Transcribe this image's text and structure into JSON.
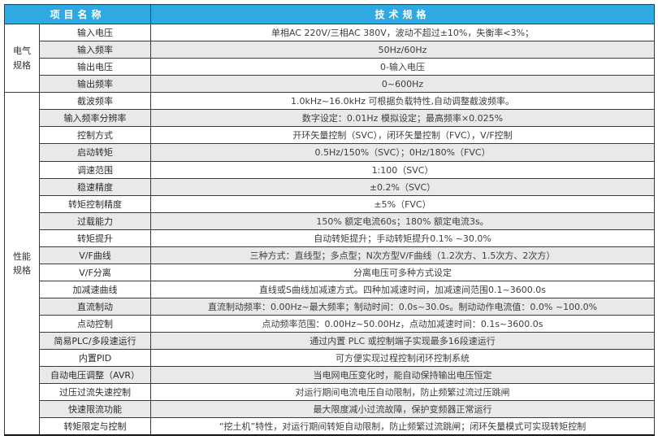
{
  "colors": {
    "header_bg": "#2FA9E1",
    "header_text": "#ffffff",
    "row_gray": "#e9e9e9",
    "row_white": "#ffffff",
    "border": "#3a3a3a"
  },
  "header": {
    "item_col": "项目名称",
    "spec_col": "技术规格"
  },
  "groups": [
    {
      "name": "电气\n规格",
      "rows": [
        {
          "label": "输入电压",
          "value": "单相AC 220V/三相AC 380V，波动不超过±10%，失衡率<3%；",
          "shade": "white"
        },
        {
          "label": "输入频率",
          "value": "50Hz/60Hz",
          "shade": "gray"
        },
        {
          "label": "输出电压",
          "value": "0-输入电压",
          "shade": "white"
        },
        {
          "label": "输出频率",
          "value": "0~600Hz",
          "shade": "gray"
        }
      ]
    },
    {
      "name": "性能\n规格",
      "rows": [
        {
          "label": "截波频率",
          "value": "1.0kHz~16.0kHz 可根据负载特性,自动调整截波频率。",
          "shade": "white"
        },
        {
          "label": "输入频率分辨率",
          "value": "数字设定：0.01Hz 模拟设定；最高频率×0.025%",
          "shade": "gray"
        },
        {
          "label": "控制方式",
          "value": "开环矢量控制（SVC），闭环矢量控制（FVC），V/F控制",
          "shade": "white"
        },
        {
          "label": "启动转矩",
          "value": "0.5Hz/150%（SVC）；0Hz/180%（FVC）",
          "shade": "gray"
        },
        {
          "label": "调速范围",
          "value": "1:100（SVC）",
          "shade": "white"
        },
        {
          "label": "稳速精度",
          "value": "±0.2%（SVC）",
          "shade": "gray"
        },
        {
          "label": "转矩控制精度",
          "value": "±5%（FVC）",
          "shade": "white"
        },
        {
          "label": "过载能力",
          "value": "150% 额定电流60s；180% 额定电流3s。",
          "shade": "gray"
        },
        {
          "label": "转矩提升",
          "value": "自动转矩提升；手动转矩提升0.1% ~30.0%",
          "shade": "white"
        },
        {
          "label": "V/F曲线",
          "value": "三种方式：直线型；多点型；N次方型V/F曲线（1.2次方、1.5次方、2次方）",
          "shade": "gray"
        },
        {
          "label": "V/F分离",
          "value": "分离电压可多种方式设定",
          "shade": "white"
        },
        {
          "label": "加减速曲线",
          "value": "直线或S曲线加减速方式。四种加减速时间，加减速间范围0.1~3600.0s",
          "shade": "white"
        },
        {
          "label": "直流制动",
          "value": "直流制动频率：0.00Hz~最大频率；制动时间：0.0s~30.0s。制动动作电流值：0.0% ~100.0%",
          "shade": "gray"
        },
        {
          "label": "点动控制",
          "value": "点动频率范围：0.00Hz~50.00Hz，点动加减速时间：0.1s~3600.0s",
          "shade": "white"
        },
        {
          "label": "简易PLC/多段速运行",
          "value": "通过内置 PLC 或控制端子实现最多16段速运行",
          "shade": "gray"
        },
        {
          "label": "内置PID",
          "value": "可方便实现过程控制闭环控制系统",
          "shade": "white"
        },
        {
          "label": "自动电压调整（AVR）",
          "value": "当电网电压变化时，能自动保持输出电压恒定",
          "shade": "gray"
        },
        {
          "label": "过压过流失速控制",
          "value": "对运行期间电流电压自动限制，防止频繁过流过压跳闸",
          "shade": "white"
        },
        {
          "label": "快速限流功能",
          "value": "最大限度减小过流故障，保护变频器正常运行",
          "shade": "gray"
        },
        {
          "label": "转矩限定与控制",
          "value": "“挖土机”特性，对运行期间转矩自动限制，防止频繁过流跳闸；闭环矢量模式可实现转矩控制",
          "shade": "white"
        }
      ]
    }
  ]
}
